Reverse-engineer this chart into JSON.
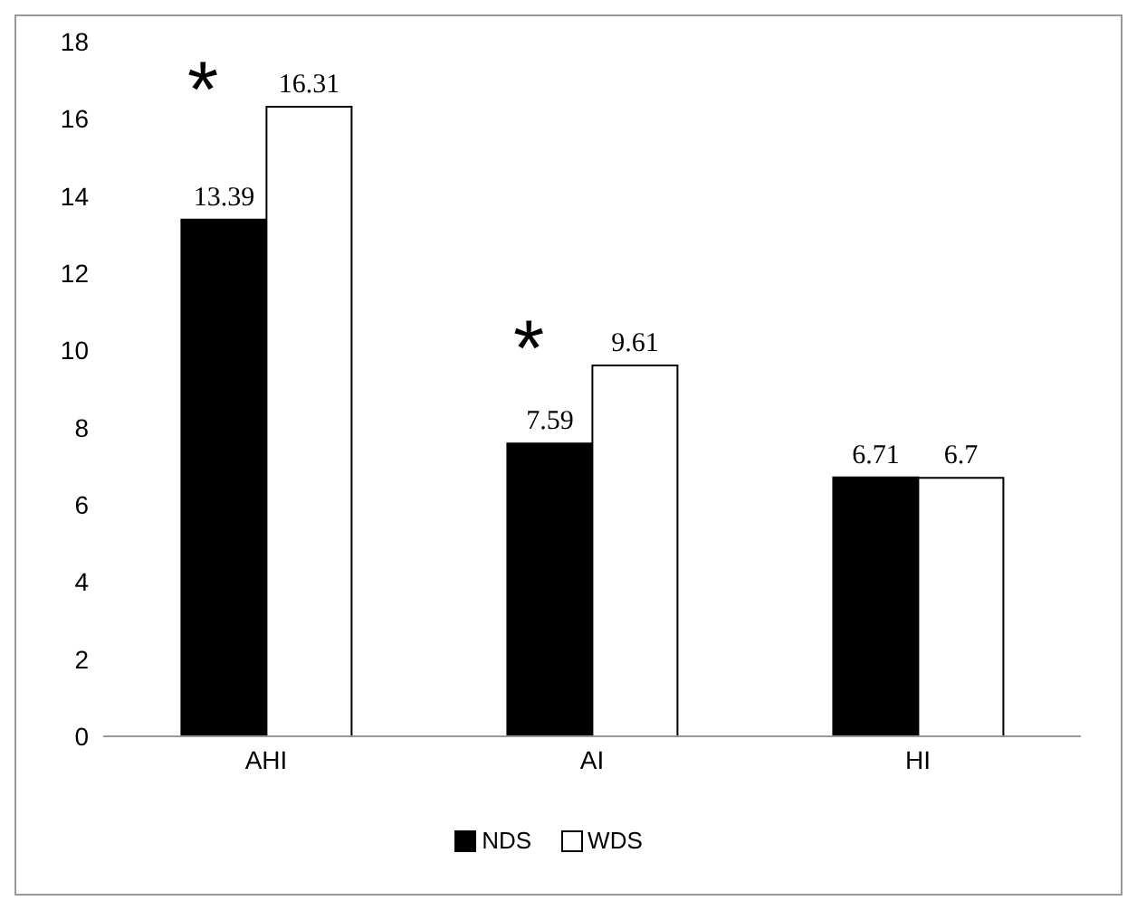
{
  "chart_data": {
    "type": "bar",
    "categories": [
      "AHI",
      "AI",
      "HI"
    ],
    "series": [
      {
        "name": "NDS",
        "color": "#000000",
        "values": [
          13.39,
          7.59,
          6.71
        ]
      },
      {
        "name": "WDS",
        "color": "#ffffff",
        "values": [
          16.31,
          9.61,
          6.7
        ]
      }
    ],
    "ylim": [
      0,
      18
    ],
    "yticks": [
      0,
      2,
      4,
      6,
      8,
      10,
      12,
      14,
      16,
      18
    ],
    "grid": false,
    "legend": "bottom",
    "data_labels": true,
    "annotations": [
      "*",
      "*"
    ]
  }
}
